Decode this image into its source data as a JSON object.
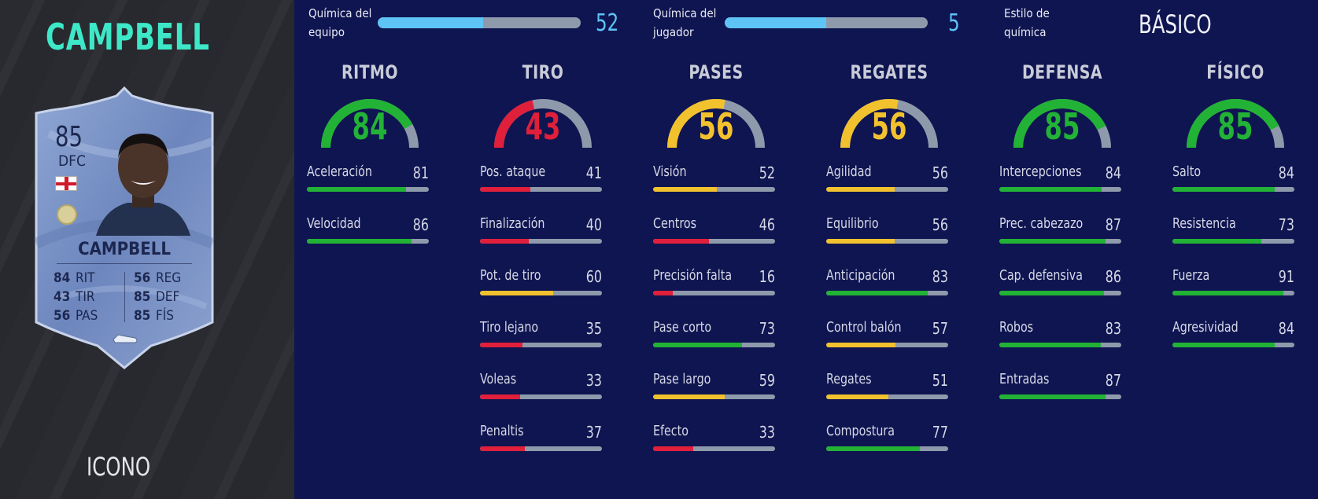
{
  "colors": {
    "green": "#22b236",
    "yellow": "#f2c12e",
    "red": "#e01f3b",
    "track": "#8e9aab",
    "accent": "#5ec4f6",
    "title": "#3de8c8"
  },
  "player": {
    "title": "CAMPBELL",
    "type": "ICONO",
    "card": {
      "rating": "85",
      "position": "DFC",
      "name": "CAMPBELL",
      "stats_left": [
        {
          "value": "84",
          "label": "RIT"
        },
        {
          "value": "43",
          "label": "TIR"
        },
        {
          "value": "56",
          "label": "PAS"
        }
      ],
      "stats_right": [
        {
          "value": "56",
          "label": "REG"
        },
        {
          "value": "85",
          "label": "DEF"
        },
        {
          "value": "85",
          "label": "FÍS"
        }
      ]
    }
  },
  "chemistry": {
    "team_label_1": "Química del",
    "team_label_2": "equipo",
    "team_value": "52",
    "team_max": 100,
    "player_label_1": "Química del",
    "player_label_2": "jugador",
    "player_value": "5",
    "player_max": 10,
    "style_label_1": "Estilo de",
    "style_label_2": "química",
    "style_value": "BÁSICO"
  },
  "categories": [
    {
      "title": "RITMO",
      "value": "84",
      "color": "green",
      "stats": [
        {
          "label": "Aceleración",
          "value": "81",
          "color": "green"
        },
        {
          "label": "Velocidad",
          "value": "86",
          "color": "green"
        }
      ]
    },
    {
      "title": "TIRO",
      "value": "43",
      "color": "red",
      "stats": [
        {
          "label": "Pos. ataque",
          "value": "41",
          "color": "red"
        },
        {
          "label": "Finalización",
          "value": "40",
          "color": "red"
        },
        {
          "label": "Pot. de tiro",
          "value": "60",
          "color": "yellow"
        },
        {
          "label": "Tiro lejano",
          "value": "35",
          "color": "red"
        },
        {
          "label": "Voleas",
          "value": "33",
          "color": "red"
        },
        {
          "label": "Penaltis",
          "value": "37",
          "color": "red"
        }
      ]
    },
    {
      "title": "PASES",
      "value": "56",
      "color": "yellow",
      "stats": [
        {
          "label": "Visión",
          "value": "52",
          "color": "yellow"
        },
        {
          "label": "Centros",
          "value": "46",
          "color": "red"
        },
        {
          "label": "Precisión falta",
          "value": "16",
          "color": "red"
        },
        {
          "label": "Pase corto",
          "value": "73",
          "color": "green"
        },
        {
          "label": "Pase largo",
          "value": "59",
          "color": "yellow"
        },
        {
          "label": "Efecto",
          "value": "33",
          "color": "red"
        }
      ]
    },
    {
      "title": "REGATES",
      "value": "56",
      "color": "yellow",
      "stats": [
        {
          "label": "Agilidad",
          "value": "56",
          "color": "yellow"
        },
        {
          "label": "Equilibrio",
          "value": "56",
          "color": "yellow"
        },
        {
          "label": "Anticipación",
          "value": "83",
          "color": "green"
        },
        {
          "label": "Control balón",
          "value": "57",
          "color": "yellow"
        },
        {
          "label": "Regates",
          "value": "51",
          "color": "yellow"
        },
        {
          "label": "Compostura",
          "value": "77",
          "color": "green"
        }
      ]
    },
    {
      "title": "DEFENSA",
      "value": "85",
      "color": "green",
      "stats": [
        {
          "label": "Intercepciones",
          "value": "84",
          "color": "green"
        },
        {
          "label": "Prec. cabezazo",
          "value": "87",
          "color": "green"
        },
        {
          "label": "Cap. defensiva",
          "value": "86",
          "color": "green"
        },
        {
          "label": "Robos",
          "value": "83",
          "color": "green"
        },
        {
          "label": "Entradas",
          "value": "87",
          "color": "green"
        }
      ]
    },
    {
      "title": "FÍSICO",
      "value": "85",
      "color": "green",
      "stats": [
        {
          "label": "Salto",
          "value": "84",
          "color": "green"
        },
        {
          "label": "Resistencia",
          "value": "73",
          "color": "green"
        },
        {
          "label": "Fuerza",
          "value": "91",
          "color": "green"
        },
        {
          "label": "Agresividad",
          "value": "84",
          "color": "green"
        }
      ]
    }
  ]
}
